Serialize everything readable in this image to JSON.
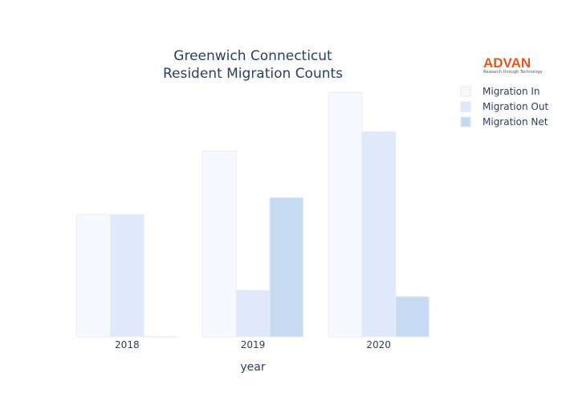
{
  "chart_data": {
    "type": "bar",
    "title_lines": [
      "Greenwich Connecticut",
      "Resident Migration Counts"
    ],
    "xlabel": "year",
    "ylabel": "",
    "categories": [
      "2018",
      "2019",
      "2020"
    ],
    "series": [
      {
        "name": "Migration In",
        "values": [
          1000,
          1520,
          2000
        ],
        "color": "#f7f9fe"
      },
      {
        "name": "Migration Out",
        "values": [
          1000,
          380,
          1680
        ],
        "color": "#dfe9fa"
      },
      {
        "name": "Migration Net",
        "values": [
          4,
          1140,
          330
        ],
        "color": "#c6daf2"
      }
    ],
    "ylim": [
      0,
      2100
    ],
    "grid": false,
    "legend_position": "top-right"
  },
  "logo": {
    "name": "ADVAN",
    "tagline": "Research through Technology"
  }
}
